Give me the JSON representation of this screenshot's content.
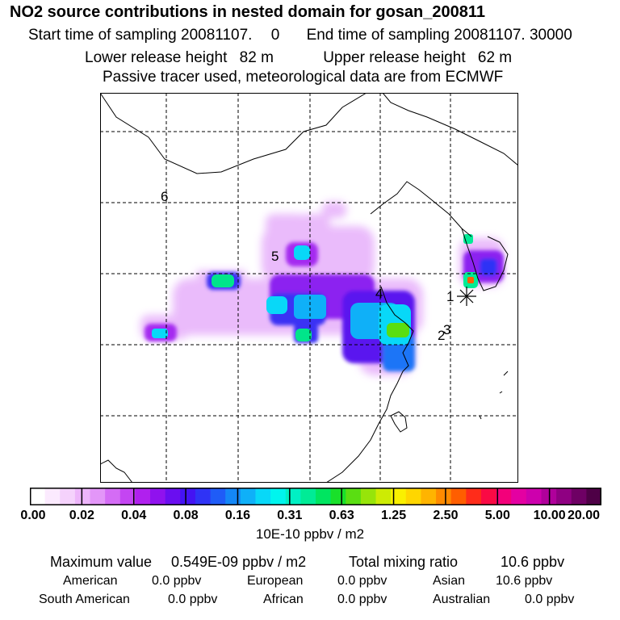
{
  "header": {
    "title": "NO2 source contributions in nested domain for gosan_200811",
    "start_label": "Start time of sampling 20081107.",
    "start_hour": "0",
    "end_label": "End time of sampling 20081107. 30000",
    "lower_label": "Lower release height",
    "lower_value": "82 m",
    "upper_label": "Upper release height",
    "upper_value": "62 m",
    "note": "Passive tracer used, meteorological data are from ECMWF"
  },
  "map": {
    "receptor_labels": [
      "1",
      "2",
      "3",
      "4",
      "5",
      "6"
    ],
    "receptor_marker": "asterisk-icon"
  },
  "colorbar": {
    "colors": [
      "#ffffff",
      "#fbeafe",
      "#f5d2fc",
      "#edb5fa",
      "#e396f8",
      "#d46cf5",
      "#c445f2",
      "#b020ee",
      "#9012ee",
      "#6a0ef0",
      "#4413f3",
      "#2f33f6",
      "#1f5cf7",
      "#1487f7",
      "#0fb0f8",
      "#08d8f8",
      "#00f5ee",
      "#00f0c4",
      "#00eb96",
      "#00e560",
      "#19e02a",
      "#5ade12",
      "#97e40a",
      "#cdeb04",
      "#faf000",
      "#ffd600",
      "#ffb400",
      "#ff8b00",
      "#ff5e00",
      "#ff2c1a",
      "#fa0a44",
      "#f3007a",
      "#e400a2",
      "#cd00ad",
      "#b0009b",
      "#8f0082",
      "#6e0064",
      "#4e0046"
    ],
    "tick_labels": [
      "0.00",
      "0.02",
      "0.04",
      "0.08",
      "0.16",
      "0.31",
      "0.63",
      "1.25",
      "2.50",
      "5.00",
      "10.00",
      "20.00"
    ],
    "unit": "10E-10 ppbv / m2"
  },
  "footer": {
    "max_label": "Maximum value",
    "max_value": "0.549E-09 ppbv / m2",
    "total_label": "Total mixing ratio",
    "total_value": "10.6 ppbv",
    "regions": [
      {
        "name": "American",
        "value": "0.0 ppbv"
      },
      {
        "name": "European",
        "value": "0.0 ppbv"
      },
      {
        "name": "Asian",
        "value": "10.6 ppbv"
      },
      {
        "name": "South American",
        "value": "0.0 ppbv"
      },
      {
        "name": "African",
        "value": "0.0 ppbv"
      },
      {
        "name": "Australian",
        "value": "0.0 ppbv"
      }
    ]
  }
}
